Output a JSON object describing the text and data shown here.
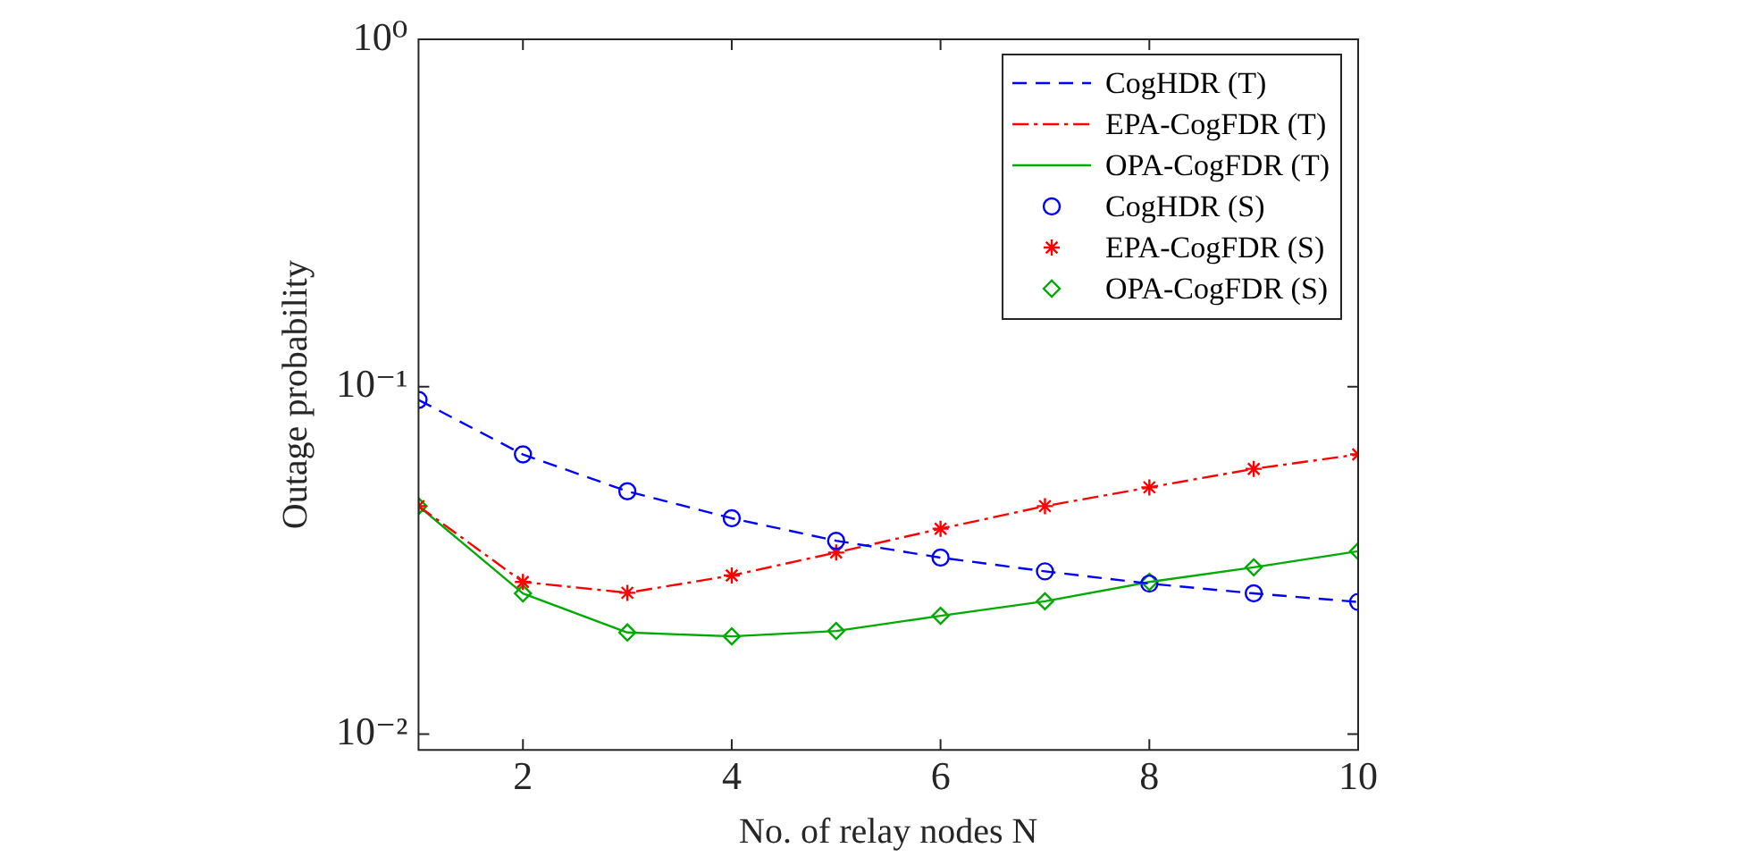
{
  "chart_data": {
    "type": "line",
    "xlabel": "No. of relay nodes N",
    "ylabel": "Outage probability",
    "x": [
      1,
      2,
      3,
      4,
      5,
      6,
      7,
      8,
      9,
      10
    ],
    "xlim": [
      1,
      10
    ],
    "xticks": [
      2,
      4,
      6,
      8,
      10
    ],
    "ylim": [
      0.009,
      1
    ],
    "yticks": [
      {
        "value": 1,
        "label": "10⁰"
      },
      {
        "value": 0.1,
        "label": "10⁻¹"
      },
      {
        "value": 0.01,
        "label": "10⁻²"
      }
    ],
    "log": "y",
    "grid": false,
    "legend": "top right",
    "series": [
      {
        "name": "CogHDR (T)",
        "color": "#0000ff",
        "line_style": "dashed",
        "marker": "none",
        "values": [
          0.0916,
          0.0638,
          0.05,
          0.0418,
          0.036,
          0.0322,
          0.0294,
          0.0271,
          0.0254,
          0.024
        ]
      },
      {
        "name": "EPA-CogFDR (T)",
        "color": "#ff0000",
        "line_style": "dashdot",
        "marker": "none",
        "values": [
          0.0453,
          0.0274,
          0.0255,
          0.0286,
          0.0333,
          0.039,
          0.0453,
          0.0513,
          0.058,
          0.0638
        ]
      },
      {
        "name": "OPA-CogFDR (T)",
        "color": "#00aa00",
        "line_style": "solid",
        "marker": "none",
        "values": [
          0.0453,
          0.0254,
          0.0196,
          0.0191,
          0.0198,
          0.0219,
          0.0241,
          0.0274,
          0.0302,
          0.0336
        ]
      },
      {
        "name": "CogHDR (S)",
        "type": "scatter",
        "color": "#0000ff",
        "marker": "circle",
        "values": [
          0.0916,
          0.0638,
          0.05,
          0.0418,
          0.036,
          0.0322,
          0.0294,
          0.0271,
          0.0254,
          0.024
        ]
      },
      {
        "name": "EPA-CogFDR (S)",
        "type": "scatter",
        "color": "#ff0000",
        "marker": "cross",
        "values": [
          0.0453,
          0.0274,
          0.0255,
          0.0286,
          0.0333,
          0.039,
          0.0453,
          0.0513,
          0.058,
          0.0638
        ]
      },
      {
        "name": "OPA-CogFDR (S)",
        "type": "scatter",
        "color": "#00aa00",
        "marker": "diamond",
        "values": [
          0.0453,
          0.0254,
          0.0196,
          0.0191,
          0.0198,
          0.0219,
          0.0241,
          0.0274,
          0.0302,
          0.0336
        ]
      }
    ]
  }
}
